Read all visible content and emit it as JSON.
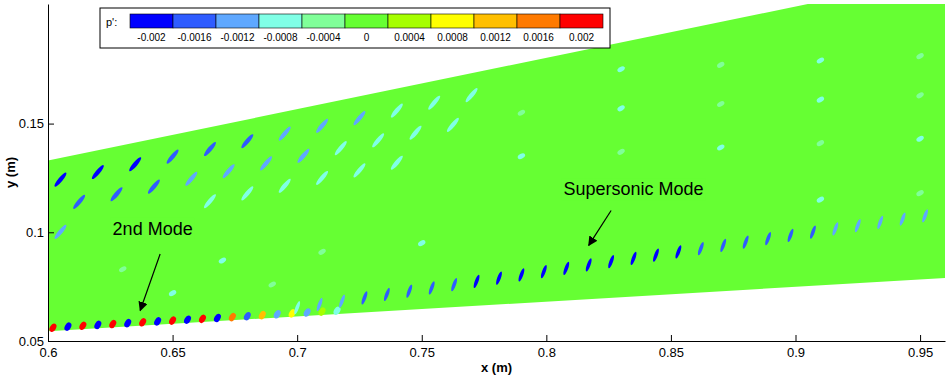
{
  "chart_data": {
    "type": "contour",
    "x_label": "x (m)",
    "y_label": "y (m)",
    "xlim": [
      0.6,
      0.96
    ],
    "xticks": [
      0.6,
      0.65,
      0.7,
      0.75,
      0.8,
      0.85,
      0.9,
      0.95
    ],
    "ylim": [
      0.05,
      0.205
    ],
    "yticks": [
      0.05,
      0.1,
      0.15
    ],
    "colorbar": {
      "label": "p':",
      "ticks": [
        -0.002,
        -0.0016,
        -0.0012,
        -0.0008,
        -0.0004,
        0,
        0.0004,
        0.0008,
        0.0012,
        0.0016,
        0.002
      ],
      "colors": [
        "#0000ff",
        "#2f5cff",
        "#5fa8ff",
        "#80ffe6",
        "#80ff99",
        "#66ff33",
        "#a6ff00",
        "#ffff00",
        "#ffbf00",
        "#ff7a00",
        "#ff0000"
      ]
    },
    "domain": {
      "x": [
        0.6,
        0.96
      ],
      "wall_y": [
        0.0545,
        0.079
      ],
      "outer_y": [
        0.133,
        0.218
      ],
      "value": 0
    },
    "field": [
      {
        "marker": "blob",
        "x": [
          0.602,
          0.608,
          0.614,
          0.62,
          0.626,
          0.632,
          0.638,
          0.644,
          0.65,
          0.656,
          0.662,
          0.668,
          0.674,
          0.68,
          0.686,
          0.692,
          0.698,
          0.704,
          0.71,
          0.716
        ],
        "y": [
          0.0561,
          0.0566,
          0.057,
          0.0574,
          0.0578,
          0.0582,
          0.0586,
          0.059,
          0.0594,
          0.0598,
          0.0602,
          0.0606,
          0.061,
          0.0614,
          0.0619,
          0.0623,
          0.0627,
          0.0631,
          0.0635,
          0.0639
        ],
        "values": [
          0.002,
          -0.002,
          0.002,
          -0.002,
          0.002,
          -0.002,
          0.002,
          -0.002,
          0.002,
          -0.002,
          0.002,
          -0.002,
          0.0016,
          -0.0016,
          0.0012,
          -0.0012,
          0.0008,
          -0.0012,
          0.0004,
          -0.0008
        ]
      },
      {
        "marker": "streak",
        "x": [
          0.7,
          0.709,
          0.718,
          0.727,
          0.736,
          0.745,
          0.754,
          0.763,
          0.772,
          0.781,
          0.79,
          0.799,
          0.808,
          0.817,
          0.826,
          0.835,
          0.844,
          0.853,
          0.862,
          0.871,
          0.88,
          0.889,
          0.898,
          0.907,
          0.916,
          0.925,
          0.934,
          0.943,
          0.952
        ],
        "y": [
          0.0653,
          0.0668,
          0.0683,
          0.0698,
          0.0714,
          0.0729,
          0.0744,
          0.0759,
          0.0774,
          0.0789,
          0.0804,
          0.0819,
          0.0834,
          0.085,
          0.0865,
          0.088,
          0.0895,
          0.091,
          0.0925,
          0.094,
          0.0955,
          0.0971,
          0.0986,
          0.1001,
          0.1016,
          0.1031,
          0.1046,
          0.1061,
          0.1076
        ],
        "values": [
          -0.0008,
          -0.0012,
          -0.0012,
          -0.0016,
          -0.0016,
          -0.0016,
          -0.0016,
          -0.0016,
          -0.002,
          -0.002,
          -0.002,
          -0.002,
          -0.002,
          -0.002,
          -0.002,
          -0.002,
          -0.002,
          -0.002,
          -0.0016,
          -0.0016,
          -0.0016,
          -0.0016,
          -0.0016,
          -0.0016,
          -0.0012,
          -0.0012,
          -0.0012,
          -0.0012,
          -0.0012
        ]
      },
      {
        "marker": "dash",
        "x": [
          0.605,
          0.62,
          0.635,
          0.65,
          0.665,
          0.68,
          0.695,
          0.71,
          0.725,
          0.74,
          0.755,
          0.77,
          0.6125,
          0.6275,
          0.6425,
          0.6575,
          0.6725,
          0.6875,
          0.7025,
          0.7175,
          0.7325,
          0.7475,
          0.7625,
          0.605,
          0.665,
          0.68,
          0.695,
          0.71,
          0.725,
          0.74
        ],
        "y": [
          0.1242,
          0.1277,
          0.1313,
          0.1348,
          0.1383,
          0.1419,
          0.1454,
          0.149,
          0.1525,
          0.156,
          0.1596,
          0.1631,
          0.114,
          0.1175,
          0.121,
          0.1246,
          0.1281,
          0.1317,
          0.1352,
          0.1387,
          0.1423,
          0.1458,
          0.1494,
          0.1002,
          0.1143,
          0.1179,
          0.1214,
          0.125,
          0.1285,
          0.132
        ],
        "values": [
          -0.002,
          -0.002,
          -0.002,
          -0.0016,
          -0.0016,
          -0.0016,
          -0.0012,
          -0.0012,
          -0.0012,
          -0.0008,
          -0.0008,
          -0.0008,
          -0.0016,
          -0.0016,
          -0.0016,
          -0.0012,
          -0.0012,
          -0.0012,
          -0.0012,
          -0.0008,
          -0.0008,
          -0.0008,
          -0.0008,
          -0.0012,
          -0.0008,
          -0.0008,
          -0.0008,
          -0.0008,
          -0.0008,
          -0.0008
        ]
      },
      {
        "marker": "dot",
        "x": [
          0.91,
          0.95,
          0.79,
          0.83,
          0.87,
          0.91,
          0.95,
          0.79,
          0.83,
          0.87,
          0.91,
          0.95,
          0.83,
          0.87,
          0.91,
          0.95,
          0.63,
          0.67,
          0.71,
          0.65,
          0.69,
          0.75
        ],
        "y": [
          0.115,
          0.118,
          0.135,
          0.137,
          0.139,
          0.141,
          0.143,
          0.155,
          0.157,
          0.159,
          0.161,
          0.163,
          0.175,
          0.177,
          0.179,
          0.181,
          0.083,
          0.087,
          0.091,
          0.072,
          0.076,
          0.095
        ],
        "values": [
          -0.0008,
          -0.0004,
          -0.0008,
          -0.0004,
          -0.0008,
          -0.0004,
          -0.0008,
          -0.0004,
          -0.0008,
          -0.0004,
          -0.0008,
          -0.0004,
          -0.0008,
          -0.0004,
          -0.0008,
          -0.0004,
          -0.0004,
          -0.0008,
          -0.0004,
          -0.0008,
          -0.0004,
          -0.0008
        ]
      }
    ],
    "annotations": [
      {
        "text": "2nd Mode",
        "x": 0.642,
        "y": 0.0989,
        "arrow_x": [
          0.645,
          0.637
        ],
        "arrow_y": [
          0.09,
          0.064
        ]
      },
      {
        "text": "Supersonic Mode",
        "x": 0.835,
        "y": 0.117,
        "arrow_x": [
          0.826,
          0.817
        ],
        "arrow_y": [
          0.11,
          0.094
        ]
      }
    ]
  }
}
